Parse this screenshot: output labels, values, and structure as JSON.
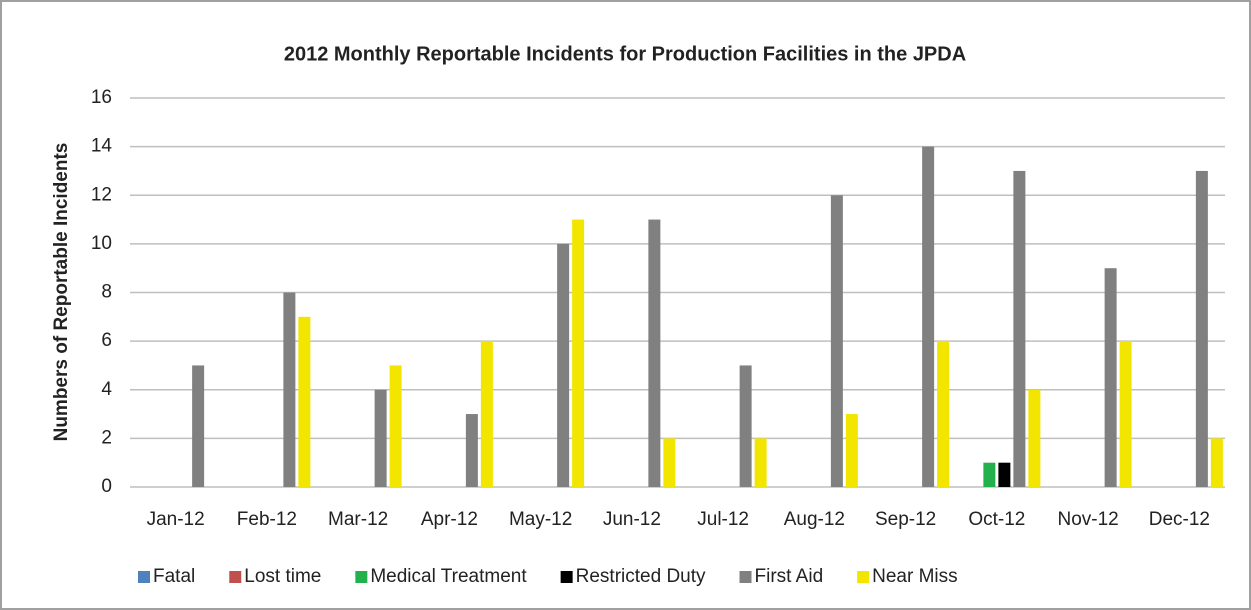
{
  "chart_data": {
    "type": "bar",
    "title": "2012 Monthly Reportable Incidents for Production Facilities in the JPDA",
    "y_label": "Numbers of Reportable Incidents",
    "categories": [
      "Jan-12",
      "Feb-12",
      "Mar-12",
      "Apr-12",
      "May-12",
      "Jun-12",
      "Jul-12",
      "Aug-12",
      "Sep-12",
      "Oct-12",
      "Nov-12",
      "Dec-12"
    ],
    "series": [
      {
        "name": "Fatal",
        "color": "#4f81bd",
        "values": [
          0,
          0,
          0,
          0,
          0,
          0,
          0,
          0,
          0,
          0,
          0,
          0
        ]
      },
      {
        "name": "Lost time",
        "color": "#c0504d",
        "values": [
          0,
          0,
          0,
          0,
          0,
          0,
          0,
          0,
          0,
          0,
          0,
          0
        ]
      },
      {
        "name": "Medical Treatment",
        "color": "#22b14c",
        "values": [
          0,
          0,
          0,
          0,
          0,
          0,
          0,
          0,
          0,
          1,
          0,
          0
        ]
      },
      {
        "name": "Restricted Duty",
        "color": "#000000",
        "values": [
          0,
          0,
          0,
          0,
          0,
          0,
          0,
          0,
          0,
          1,
          0,
          0
        ]
      },
      {
        "name": "First Aid",
        "color": "#808080",
        "values": [
          5,
          8,
          4,
          3,
          10,
          11,
          5,
          12,
          14,
          13,
          9,
          13
        ]
      },
      {
        "name": "Near Miss",
        "color": "#f2e500",
        "values": [
          0,
          7,
          5,
          6,
          11,
          2,
          2,
          3,
          6,
          4,
          6,
          2
        ]
      }
    ],
    "ylim": [
      0,
      16
    ],
    "yticks": [
      0,
      2,
      4,
      6,
      8,
      10,
      12,
      14,
      16
    ],
    "grid": true,
    "legend": "bottom"
  }
}
